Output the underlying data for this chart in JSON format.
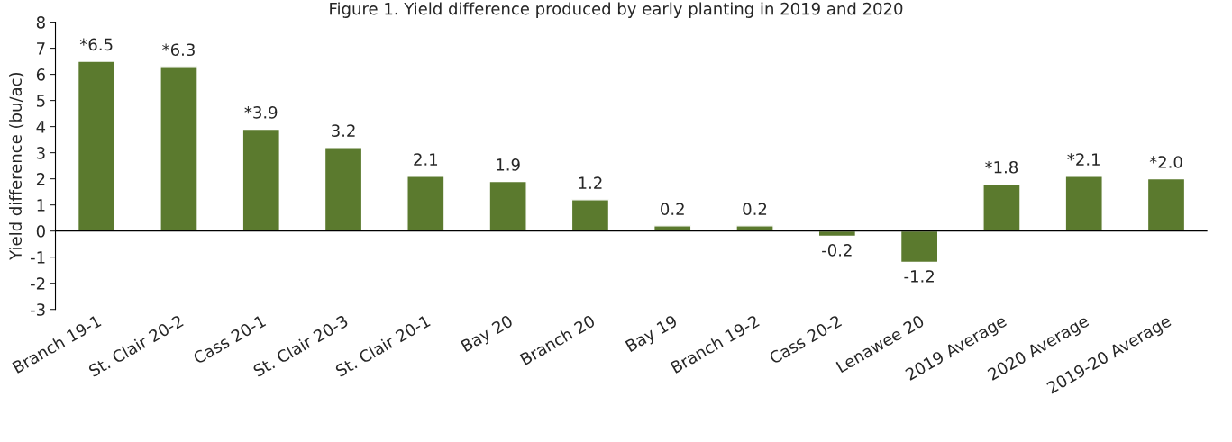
{
  "chart_data": {
    "type": "bar",
    "title": "Figure 1. Yield difference produced by early planting in 2019 and 2020",
    "ylabel": "Yield difference (bu/ac)",
    "categories": [
      "Branch 19-1",
      "St. Clair 20-2",
      "Cass 20-1",
      "St. Clair 20-3",
      "St. Clair 20-1",
      "Bay 20",
      "Branch 20",
      "Bay 19",
      "Branch 19-2",
      "Cass 20-2",
      "Lenawee 20",
      "2019 Average",
      "2020 Average",
      "2019-20 Average"
    ],
    "values": [
      6.5,
      6.3,
      3.9,
      3.2,
      2.1,
      1.9,
      1.2,
      0.2,
      0.2,
      -0.2,
      -1.2,
      1.8,
      2.1,
      2.0
    ],
    "value_labels": [
      "*6.5",
      "*6.3",
      "*3.9",
      "3.2",
      "2.1",
      "1.9",
      "1.2",
      "0.2",
      "0.2",
      "-0.2",
      "-1.2",
      "*1.8",
      "*2.1",
      "*2.0"
    ],
    "color": "#5b7a2e",
    "ylim": [
      -3,
      8
    ],
    "yticks": [
      -3,
      -2,
      -1,
      0,
      1,
      2,
      3,
      4,
      5,
      6,
      7,
      8
    ],
    "ref_lines": [
      {
        "axis": "y",
        "value": 0,
        "color": "#000000"
      }
    ],
    "grid": false
  }
}
